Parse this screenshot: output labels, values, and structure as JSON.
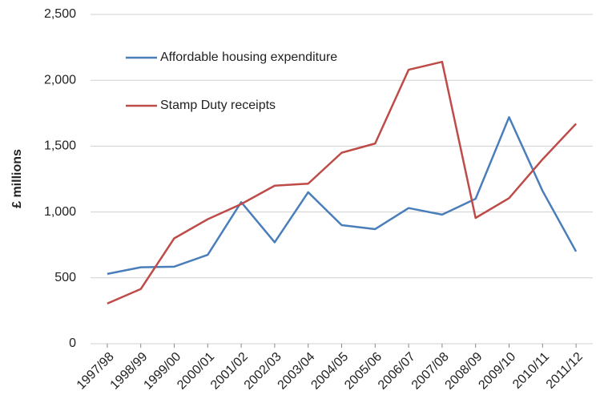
{
  "chart_data": {
    "type": "line",
    "y_label": "£ millions",
    "categories": [
      "1997/98",
      "1998/99",
      "1999/00",
      "2000/01",
      "2001/02",
      "2002/03",
      "2003/04",
      "2004/05",
      "2005/06",
      "2006/07",
      "2007/08",
      "2008/09",
      "2009/10",
      "2010/11",
      "2011/12"
    ],
    "series": [
      {
        "name": "Affordable housing expenditure",
        "color": "#4a7ebb",
        "values": [
          530,
          580,
          585,
          675,
          1075,
          770,
          1150,
          900,
          870,
          1030,
          980,
          1100,
          1720,
          1160,
          700
        ]
      },
      {
        "name": "Stamp Duty receipts",
        "color": "#be4b48",
        "values": [
          305,
          415,
          800,
          945,
          1060,
          1200,
          1215,
          1450,
          1520,
          2080,
          2140,
          955,
          1105,
          1400,
          1670
        ]
      }
    ],
    "ylim": [
      0,
      2500
    ],
    "yticks": [
      0,
      500,
      {
        "value": 1000,
        "label": "1,000"
      },
      {
        "value": 1500,
        "label": "1,500"
      },
      {
        "value": 2000,
        "label": "2,000"
      },
      {
        "value": 2500,
        "label": "2,500"
      }
    ],
    "grid": true
  }
}
